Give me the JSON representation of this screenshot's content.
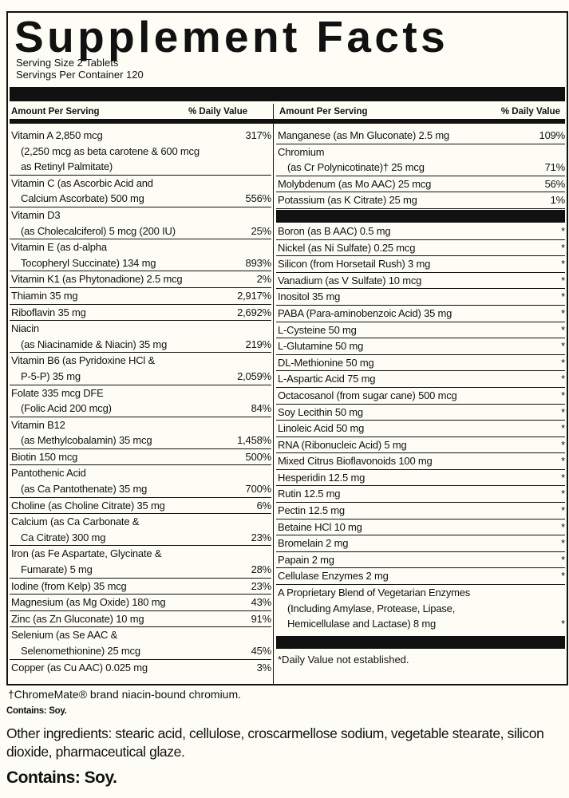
{
  "title": "Supplement Facts",
  "serving_size": "Serving Size 2 Tablets",
  "servings_per_container": "Servings Per Container 120",
  "header": {
    "amount": "Amount Per Serving",
    "dv": "% Daily Value"
  },
  "left": [
    {
      "lines": [
        "Vitamin A 2,850 mcg",
        "(2,250 mcg as beta carotene & 600 mcg",
        "as Retinyl Palmitate)"
      ],
      "dv": "317%",
      "dv_line": 0
    },
    {
      "lines": [
        "Vitamin C (as Ascorbic Acid and",
        "Calcium Ascorbate) 500 mg"
      ],
      "dv": "556%"
    },
    {
      "lines": [
        "Vitamin D3",
        "(as Cholecalciferol) 5 mcg (200 IU)"
      ],
      "dv": "25%"
    },
    {
      "lines": [
        "Vitamin E (as d-alpha",
        "Tocopheryl Succinate) 134 mg"
      ],
      "dv": "893%"
    },
    {
      "lines": [
        "Vitamin K1 (as Phytonadione) 2.5 mcg"
      ],
      "dv": "2%"
    },
    {
      "lines": [
        "Thiamin 35 mg"
      ],
      "dv": "2,917%"
    },
    {
      "lines": [
        "Riboflavin 35 mg"
      ],
      "dv": "2,692%"
    },
    {
      "lines": [
        "Niacin",
        "(as Niacinamide & Niacin) 35 mg"
      ],
      "dv": "219%"
    },
    {
      "lines": [
        "Vitamin B6 (as Pyridoxine HCl &",
        "P-5-P) 35 mg"
      ],
      "dv": "2,059%"
    },
    {
      "lines": [
        "Folate 335 mcg DFE",
        "(Folic Acid 200 mcg)"
      ],
      "dv": "84%"
    },
    {
      "lines": [
        "Vitamin B12",
        "(as Methylcobalamin) 35 mcg"
      ],
      "dv": "1,458%"
    },
    {
      "lines": [
        "Biotin 150 mcg"
      ],
      "dv": "500%"
    },
    {
      "lines": [
        "Pantothenic Acid",
        "(as Ca Pantothenate) 35 mg"
      ],
      "dv": "700%"
    },
    {
      "lines": [
        "Choline (as Choline Citrate) 35 mg"
      ],
      "dv": "6%"
    },
    {
      "lines": [
        "Calcium (as Ca Carbonate &",
        "Ca Citrate) 300 mg"
      ],
      "dv": "23%"
    },
    {
      "lines": [
        "Iron (as Fe Aspartate, Glycinate &",
        "Fumarate) 5 mg"
      ],
      "dv": "28%"
    },
    {
      "lines": [
        "Iodine (from Kelp) 35 mcg"
      ],
      "dv": "23%"
    },
    {
      "lines": [
        "Magnesium (as Mg Oxide) 180 mg"
      ],
      "dv": "43%"
    },
    {
      "lines": [
        "Zinc (as Zn Gluconate) 10 mg"
      ],
      "dv": "91%"
    },
    {
      "lines": [
        "Selenium (as Se AAC &",
        "Selenomethionine) 25 mcg"
      ],
      "dv": "45%"
    },
    {
      "lines": [
        "Copper (as Cu AAC) 0.025 mg"
      ],
      "dv": "3%"
    }
  ],
  "right_top": [
    {
      "lines": [
        "Manganese (as Mn Gluconate) 2.5 mg"
      ],
      "dv": "109%"
    },
    {
      "lines": [
        "Chromium",
        "(as Cr Polynicotinate)† 25 mcg"
      ],
      "dv": "71%"
    },
    {
      "lines": [
        "Molybdenum (as Mo AAC) 25 mcg"
      ],
      "dv": "56%"
    },
    {
      "lines": [
        "Potassium (as K Citrate) 25 mg"
      ],
      "dv": "1%"
    }
  ],
  "right_mid": [
    {
      "lines": [
        "Boron (as B AAC) 0.5 mg"
      ],
      "dv": "*"
    },
    {
      "lines": [
        "Nickel (as Ni Sulfate) 0.25 mcg"
      ],
      "dv": "*"
    },
    {
      "lines": [
        "Silicon (from Horsetail Rush) 3 mg"
      ],
      "dv": "*"
    },
    {
      "lines": [
        "Vanadium (as V Sulfate) 10 mcg"
      ],
      "dv": "*"
    },
    {
      "lines": [
        "Inositol 35 mg"
      ],
      "dv": "*"
    },
    {
      "lines": [
        "PABA (Para-aminobenzoic Acid) 35 mg"
      ],
      "dv": "*"
    },
    {
      "lines": [
        "L-Cysteine 50 mg"
      ],
      "dv": "*"
    },
    {
      "lines": [
        "L-Glutamine 50 mg"
      ],
      "dv": "*"
    },
    {
      "lines": [
        "DL-Methionine 50 mg"
      ],
      "dv": "*"
    },
    {
      "lines": [
        "L-Aspartic Acid 75 mg"
      ],
      "dv": "*"
    },
    {
      "lines": [
        "Octacosanol (from sugar cane) 500 mcg"
      ],
      "dv": "*"
    },
    {
      "lines": [
        "Soy Lecithin 50 mg"
      ],
      "dv": "*"
    },
    {
      "lines": [
        "Linoleic Acid 50 mg"
      ],
      "dv": "*"
    },
    {
      "lines": [
        "RNA (Ribonucleic Acid) 5 mg"
      ],
      "dv": "*"
    },
    {
      "lines": [
        "Mixed Citrus Bioflavonoids 100 mg"
      ],
      "dv": "*"
    },
    {
      "lines": [
        "Hesperidin 12.5 mg"
      ],
      "dv": "*"
    },
    {
      "lines": [
        "Rutin 12.5 mg"
      ],
      "dv": "*"
    },
    {
      "lines": [
        "Pectin 12.5 mg"
      ],
      "dv": "*"
    },
    {
      "lines": [
        "Betaine HCl 10 mg"
      ],
      "dv": "*"
    },
    {
      "lines": [
        "Bromelain 2 mg"
      ],
      "dv": "*"
    },
    {
      "lines": [
        "Papain 2 mg"
      ],
      "dv": "*"
    },
    {
      "lines": [
        "Cellulase Enzymes 2 mg"
      ],
      "dv": "*"
    },
    {
      "lines": [
        "A Proprietary Blend of Vegetarian Enzymes",
        "(Including Amylase, Protease, Lipase,",
        "Hemicellulase and Lactase) 8 mg"
      ],
      "dv": "*",
      "noborder": true
    }
  ],
  "dv_note": "*Daily Value not established.",
  "footnote": "†ChromeMate® brand niacin-bound chromium.",
  "contains_small": "Contains: Soy.",
  "other_ingredients": "Other ingredients: stearic acid, cellulose, croscarmellose sodium, vegetable stearate, silicon dioxide, pharmaceutical glaze.",
  "contains_large": "Contains: Soy."
}
